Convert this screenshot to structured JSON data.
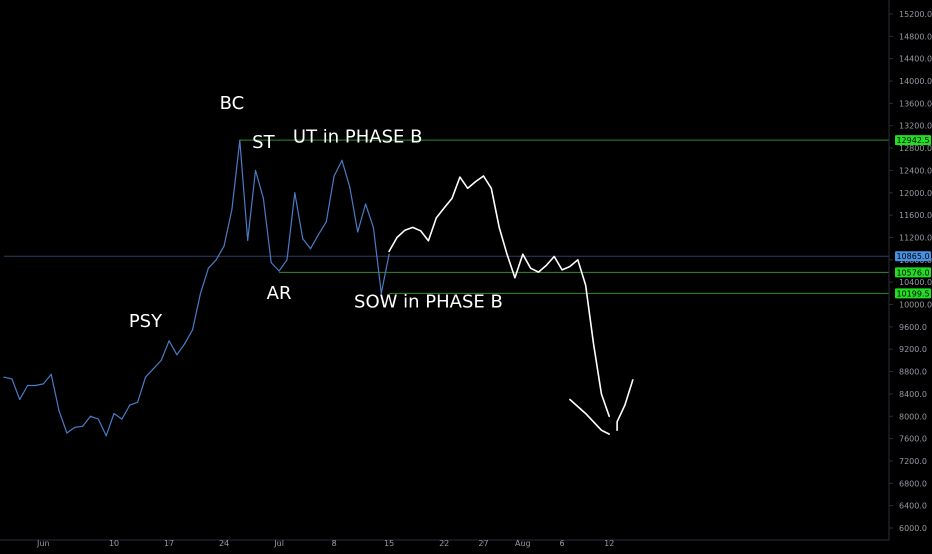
{
  "colors": {
    "background": "#000000",
    "price_line": "#4a7bc4",
    "axis_line": "#2a2e39",
    "axis_text": "#9598a1",
    "annotation_text": "#ffffff",
    "level_green": "#2e8b2e",
    "badge_green": "#22dd22",
    "level_blue": "#2c3e66",
    "badge_blue": "#4a90e2",
    "drawing": "#ffffff"
  },
  "chart_data": {
    "type": "line",
    "x_ticks": [
      "Jun",
      "10",
      "17",
      "24",
      "Jul",
      "8",
      "15",
      "22",
      "27",
      "Aug",
      "6",
      "12"
    ],
    "y_ticks": [
      "15200.0",
      "14800.0",
      "14400.0",
      "14000.0",
      "13600.0",
      "13200.0",
      "12800.0",
      "12400.0",
      "12000.0",
      "11600.0",
      "11200.0",
      "10800.0",
      "10400.0",
      "10000.0",
      "9600.0",
      "9200.0",
      "8800.0",
      "8400.0",
      "8000.0",
      "7600.0",
      "7200.0",
      "6800.0",
      "6400.0",
      "6000.0"
    ],
    "ylim": [
      5980,
      15250
    ],
    "series": [
      {
        "points": [
          [
            "2019-05-27",
            8700
          ],
          [
            "2019-05-28",
            8670
          ],
          [
            "2019-05-29",
            8300
          ],
          [
            "2019-05-30",
            8550
          ],
          [
            "2019-05-31",
            8550
          ],
          [
            "2019-06-01",
            8580
          ],
          [
            "2019-06-02",
            8750
          ],
          [
            "2019-06-03",
            8100
          ],
          [
            "2019-06-04",
            7700
          ],
          [
            "2019-06-05",
            7800
          ],
          [
            "2019-06-06",
            7820
          ],
          [
            "2019-06-07",
            8000
          ],
          [
            "2019-06-08",
            7950
          ],
          [
            "2019-06-09",
            7650
          ],
          [
            "2019-06-10",
            8050
          ],
          [
            "2019-06-11",
            7950
          ],
          [
            "2019-06-12",
            8200
          ],
          [
            "2019-06-13",
            8250
          ],
          [
            "2019-06-14",
            8700
          ],
          [
            "2019-06-15",
            8850
          ],
          [
            "2019-06-16",
            9000
          ],
          [
            "2019-06-17",
            9350
          ],
          [
            "2019-06-18",
            9100
          ],
          [
            "2019-06-19",
            9300
          ],
          [
            "2019-06-20",
            9550
          ],
          [
            "2019-06-21",
            10200
          ],
          [
            "2019-06-22",
            10650
          ],
          [
            "2019-06-23",
            10800
          ],
          [
            "2019-06-24",
            11050
          ],
          [
            "2019-06-25",
            11700
          ],
          [
            "2019-06-26",
            12940
          ],
          [
            "2019-06-27",
            11150
          ],
          [
            "2019-06-28",
            12400
          ],
          [
            "2019-06-29",
            11900
          ],
          [
            "2019-06-30",
            10750
          ],
          [
            "2019-07-01",
            10600
          ],
          [
            "2019-07-02",
            10800
          ],
          [
            "2019-07-03",
            12000
          ],
          [
            "2019-07-04",
            11180
          ],
          [
            "2019-07-05",
            11000
          ],
          [
            "2019-07-06",
            11250
          ],
          [
            "2019-07-07",
            11480
          ],
          [
            "2019-07-08",
            12300
          ],
          [
            "2019-07-09",
            12580
          ],
          [
            "2019-07-10",
            12100
          ],
          [
            "2019-07-11",
            11300
          ],
          [
            "2019-07-12",
            11800
          ],
          [
            "2019-07-13",
            11380
          ],
          [
            "2019-07-14",
            10200
          ],
          [
            "2019-07-15",
            10900
          ]
        ]
      }
    ],
    "annotations": [
      {
        "text": "PSY",
        "date": "2019-06-14",
        "value": 9600
      },
      {
        "text": "BC",
        "date": "2019-06-25",
        "value": 13500
      },
      {
        "text": "ST",
        "date": "2019-06-29",
        "value": 12800
      },
      {
        "text": "AR",
        "date": "2019-07-01",
        "value": 10100
      },
      {
        "text": "UT in PHASE B",
        "date": "2019-07-11",
        "value": 12900
      },
      {
        "text": "SOW in PHASE B",
        "date": "2019-07-20",
        "value": 9950
      }
    ],
    "levels": [
      {
        "value": 12942.5,
        "label": "12942.5",
        "style": "green",
        "from": "2019-06-26"
      },
      {
        "value": 10865.0,
        "label": "10865.0",
        "style": "blue",
        "from": "2019-05-27"
      },
      {
        "value": 10576.0,
        "label": "10576.0",
        "style": "green",
        "from": "2019-07-01"
      },
      {
        "value": 10199.5,
        "label": "10199.5",
        "style": "green",
        "from": "2019-07-15"
      }
    ],
    "projection": [
      [
        "2019-07-15",
        10950
      ],
      [
        "2019-07-16",
        11200
      ],
      [
        "2019-07-17",
        11330
      ],
      [
        "2019-07-18",
        11380
      ],
      [
        "2019-07-19",
        11320
      ],
      [
        "2019-07-20",
        11140
      ],
      [
        "2019-07-21",
        11550
      ],
      [
        "2019-07-22",
        11730
      ],
      [
        "2019-07-23",
        11900
      ],
      [
        "2019-07-24",
        12280
      ],
      [
        "2019-07-25",
        12080
      ],
      [
        "2019-07-26",
        12200
      ],
      [
        "2019-07-27",
        12300
      ],
      [
        "2019-07-28",
        12080
      ],
      [
        "2019-07-29",
        11380
      ],
      [
        "2019-07-30",
        10900
      ],
      [
        "2019-07-31",
        10480
      ],
      [
        "2019-08-01",
        10900
      ],
      [
        "2019-08-02",
        10650
      ],
      [
        "2019-08-03",
        10580
      ],
      [
        "2019-08-04",
        10700
      ],
      [
        "2019-08-05",
        10860
      ],
      [
        "2019-08-06",
        10620
      ],
      [
        "2019-08-07",
        10680
      ],
      [
        "2019-08-08",
        10800
      ],
      [
        "2019-08-09",
        10350
      ],
      [
        "2019-08-10",
        9300
      ],
      [
        "2019-08-11",
        8400
      ],
      [
        "2019-08-12",
        8000
      ]
    ],
    "projection_arrow": [
      [
        [
          "2019-08-07",
          8300
        ],
        [
          "2019-08-09",
          8050
        ],
        [
          "2019-08-11",
          7750
        ],
        [
          "2019-08-12",
          7680
        ]
      ],
      [
        [
          "2019-08-13",
          7750
        ],
        [
          "2019-08-13",
          7900
        ],
        [
          "2019-08-14",
          8200
        ],
        [
          "2019-08-15",
          8650
        ]
      ]
    ]
  }
}
